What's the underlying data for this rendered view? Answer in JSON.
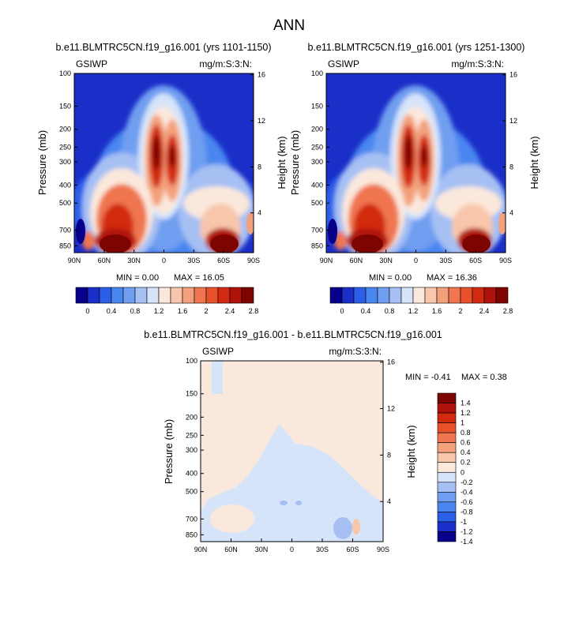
{
  "figure_title": "ANN",
  "chart_data": [
    {
      "type": "heatmap",
      "title": "b.e11.BLMTRC5CN.f19_g16.001 (yrs 1101-1150)",
      "left_label": "GSIWP",
      "right_label": "mg/m:S:3:N:",
      "ylabel": "Pressure (mb)",
      "ylabel_right": "Height (km)",
      "x_ticks": [
        "90N",
        "60N",
        "30N",
        "0",
        "30S",
        "60S",
        "90S"
      ],
      "y_ticks": [
        "100",
        "150",
        "200",
        "250",
        "300",
        "400",
        "500",
        "700",
        "850"
      ],
      "y_ticks_right": [
        "16",
        "12",
        "8",
        "4"
      ],
      "ylim": [
        100,
        925
      ],
      "xlim": [
        90,
        -90
      ],
      "min_text": "MIN =  0.00",
      "max_text": "MAX = 16.05",
      "min": 0.0,
      "max": 16.05,
      "colorbar_labels": [
        "0",
        "0.4",
        "0.8",
        "1.2",
        "1.6",
        "2",
        "2.4",
        "2.8"
      ]
    },
    {
      "type": "heatmap",
      "title": "b.e11.BLMTRC5CN.f19_g16.001 (yrs 1251-1300)",
      "left_label": "GSIWP",
      "right_label": "mg/m:S:3:N:",
      "ylabel": "Pressure (mb)",
      "ylabel_right": "Height (km)",
      "x_ticks": [
        "90N",
        "60N",
        "30N",
        "0",
        "30S",
        "60S",
        "90S"
      ],
      "y_ticks": [
        "100",
        "150",
        "200",
        "250",
        "300",
        "400",
        "500",
        "700",
        "850"
      ],
      "y_ticks_right": [
        "16",
        "12",
        "8",
        "4"
      ],
      "ylim": [
        100,
        925
      ],
      "xlim": [
        90,
        -90
      ],
      "min_text": "MIN =  0.00",
      "max_text": "MAX = 16.36",
      "min": 0.0,
      "max": 16.36,
      "colorbar_labels": [
        "0",
        "0.4",
        "0.8",
        "1.2",
        "1.6",
        "2",
        "2.4",
        "2.8"
      ]
    },
    {
      "type": "heatmap",
      "title": "b.e11.BLMTRC5CN.f19_g16.001 - b.e11.BLMTRC5CN.f19_g16.001",
      "left_label": "GSIWP",
      "right_label": "mg/m:S:3:N:",
      "ylabel": "Pressure (mb)",
      "ylabel_right": "Height (km)",
      "x_ticks": [
        "90N",
        "60N",
        "30N",
        "0",
        "30S",
        "60S",
        "90S"
      ],
      "y_ticks": [
        "100",
        "150",
        "200",
        "250",
        "300",
        "400",
        "500",
        "700",
        "850"
      ],
      "y_ticks_right": [
        "16",
        "12",
        "8",
        "4"
      ],
      "ylim": [
        100,
        925
      ],
      "xlim": [
        90,
        -90
      ],
      "min_text": "MIN = -0.41",
      "max_text": "MAX =  0.38",
      "min": -0.41,
      "max": 0.38,
      "colorbar_labels": [
        "1.4",
        "1.2",
        "1",
        "0.8",
        "0.6",
        "0.4",
        "0.2",
        "0",
        "-0.2",
        "-0.4",
        "-0.6",
        "-0.8",
        "-1",
        "-1.2",
        "-1.4"
      ]
    }
  ],
  "colors": {
    "abs_scale": [
      "#08008a",
      "#1a2fc8",
      "#2c5ee8",
      "#4a86f0",
      "#709ef0",
      "#a6c0f4",
      "#d6e4fa",
      "#fbe8dc",
      "#f8c6aa",
      "#f3a07c",
      "#ef7650",
      "#e8502a",
      "#d22a10",
      "#ae120a",
      "#7e0400"
    ],
    "diff_scale": [
      "#7e0400",
      "#ae120a",
      "#d22a10",
      "#e8502a",
      "#ef7650",
      "#f3a07c",
      "#f8c6aa",
      "#fbe8dc",
      "#d6e4fa",
      "#a6c0f4",
      "#709ef0",
      "#4a86f0",
      "#2c5ee8",
      "#1a2fc8",
      "#08008a"
    ],
    "diff_background": "#fbe8dc",
    "diff_negative": "#d6e4fa",
    "diff_strong_negative": "#a6c0f4",
    "diff_positive": "#f8c6aa"
  }
}
